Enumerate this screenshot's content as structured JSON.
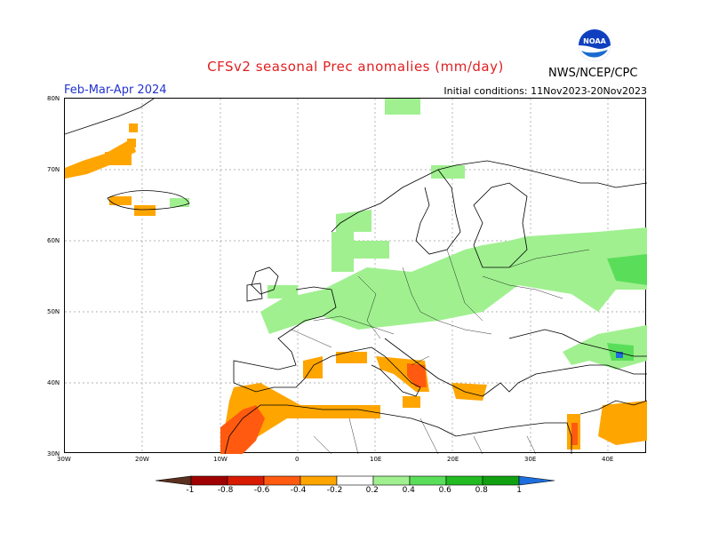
{
  "title": "CFSv2 seasonal Prec anomalies (mm/day)",
  "period": "Feb-Mar-Apr 2024",
  "initial_conditions": "Initial conditions: 11Nov2023-20Nov2023",
  "agency": "NWS/NCEP/CPC",
  "logo_text": "NOAA",
  "lat_labels": [
    "80N",
    "70N",
    "60N",
    "50N",
    "40N",
    "30N"
  ],
  "lon_labels": [
    "30W",
    "20W",
    "10W",
    "0",
    "10E",
    "20E",
    "30E",
    "40E"
  ],
  "colorbar": {
    "labels": [
      "-1",
      "-0.8",
      "-0.6",
      "-0.4",
      "-0.2",
      "0.2",
      "0.4",
      "0.6",
      "0.8",
      "1"
    ],
    "colors": [
      "#5a3020",
      "#a00000",
      "#d81a00",
      "#ff5a10",
      "#ffa500",
      "#ffffff",
      "#a0f090",
      "#5ade5a",
      "#22bb22",
      "#10a010",
      "#1e6edd"
    ]
  },
  "colors": {
    "title": "#e02020",
    "period": "#2233cc",
    "orange": "#ffa500",
    "red": "#ff5a10",
    "green_light": "#a0f090",
    "green": "#5ade5a"
  }
}
